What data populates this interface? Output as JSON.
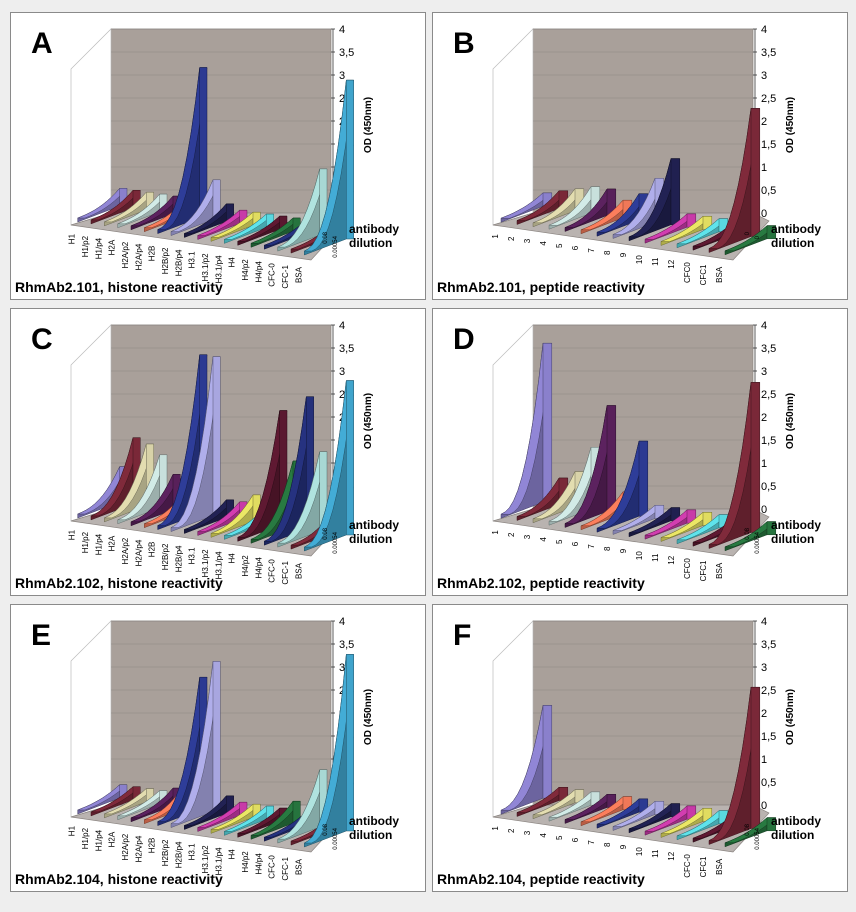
{
  "chart_data": [
    {
      "type": "bar",
      "panel": "A",
      "title": "RhmAb2.101, histone reactivity",
      "zlabel": "OD (450nm)",
      "ylabel": "antibody\ndilution",
      "z_ticks": [
        "0",
        "0,5",
        "1",
        "1,5",
        "2",
        "2,5",
        "3",
        "3,5",
        "4"
      ],
      "dilutions": [
        "0.08",
        "0.00054"
      ],
      "ylim": [
        0,
        4
      ],
      "categories": [
        "H1",
        "H1/p2",
        "H1/p4",
        "H2A",
        "H2A/p2",
        "H2A/p4",
        "H2B",
        "H2B/p2",
        "H2B/p4",
        "H3.1",
        "H3.1/p2",
        "H3.1/p4",
        "H4",
        "H4/p2",
        "H4/p4",
        "CFC-0",
        "CFC-1",
        "BSA"
      ],
      "values": [
        0.4,
        0.4,
        0.4,
        0.4,
        0.4,
        0.4,
        3.4,
        0.9,
        0.4,
        0.3,
        0.3,
        0.3,
        0.3,
        0.3,
        0.3,
        1.5,
        0.3,
        3.6
      ]
    },
    {
      "type": "bar",
      "panel": "B",
      "title": "RhmAb2.101, peptide reactivity",
      "zlabel": "OD (450nm)",
      "ylabel": "antibody\ndilution",
      "z_ticks": [
        "0",
        "0,5",
        "1",
        "1,5",
        "2",
        "2,5",
        "3",
        "3,5",
        "4"
      ],
      "dilutions": [
        "0",
        "0"
      ],
      "ylim": [
        0,
        4
      ],
      "categories": [
        "1",
        "2",
        "3",
        "4",
        "5",
        "6",
        "7",
        "8",
        "9",
        "10",
        "11",
        "12",
        "CFC0",
        "CFC1",
        "BSA"
      ],
      "values": [
        0.3,
        0.4,
        0.5,
        0.6,
        0.6,
        0.4,
        0.6,
        1.0,
        1.5,
        0.3,
        0.3,
        0.3,
        0.3,
        2.9,
        0.3
      ]
    },
    {
      "type": "bar",
      "panel": "C",
      "title": "RhmAb2.102, histone reactivity",
      "zlabel": "OD (450nm)",
      "ylabel": "antibody\ndilution",
      "z_ticks": [
        "0",
        "0,5",
        "1",
        "1,5",
        "2",
        "2,5",
        "3",
        "3,5",
        "4"
      ],
      "dilutions": [
        "0.08",
        "0.00054"
      ],
      "ylim": [
        0,
        4
      ],
      "categories": [
        "H1",
        "H1/p2",
        "H1/p4",
        "H2A",
        "H2A/p2",
        "H2A/p4",
        "H2B",
        "H2B/p2",
        "H2B/p4",
        "H3.1",
        "H3.1/p2",
        "H3.1/p4",
        "H4",
        "H4/p2",
        "H4/p4",
        "CFC-0",
        "CFC-1",
        "BSA"
      ],
      "values": [
        0.8,
        1.5,
        1.4,
        1.2,
        0.8,
        0.5,
        3.6,
        3.6,
        0.4,
        0.4,
        0.6,
        0.4,
        2.6,
        1.5,
        3.0,
        1.8,
        0.5,
        3.5
      ]
    },
    {
      "type": "bar",
      "panel": "D",
      "title": "RhmAb2.102, peptide reactivity",
      "zlabel": "OD (450nm)",
      "ylabel": "antibody\ndilution",
      "z_ticks": [
        "0",
        "0,5",
        "1",
        "1,5",
        "2",
        "2,5",
        "3",
        "3,5",
        "4"
      ],
      "dilutions": [
        "0.08",
        "0.00054"
      ],
      "ylim": [
        0,
        4
      ],
      "categories": [
        "1",
        "2",
        "3",
        "4",
        "5",
        "6",
        "7",
        "8",
        "9",
        "10",
        "11",
        "12",
        "CFC0",
        "CFC1",
        "BSA"
      ],
      "values": [
        3.6,
        0.6,
        0.8,
        1.4,
        2.4,
        0.5,
        1.7,
        0.3,
        0.3,
        0.3,
        0.3,
        0.3,
        0.3,
        3.4,
        0.3
      ]
    },
    {
      "type": "bar",
      "panel": "E",
      "title": "RhmAb2.104, histone reactivity",
      "zlabel": "OD (450nm)",
      "ylabel": "antibody\ndilution",
      "z_ticks": [
        "0",
        "0,5",
        "1",
        "1,5",
        "2",
        "2,5",
        "3",
        "3,5",
        "4"
      ],
      "dilutions": [
        "0.08",
        "0.00054"
      ],
      "ylim": [
        0,
        4
      ],
      "categories": [
        "H1",
        "H1/p2",
        "H1/p4",
        "H2A",
        "H2A/p2",
        "H2A/p4",
        "H2B",
        "H2B/p2",
        "H2B/p4",
        "H3.1",
        "H3.1/p2",
        "H3.1/p4",
        "H4",
        "H4/p2",
        "H4/p4",
        "CFC-0",
        "CFC-1",
        "BSA"
      ],
      "values": [
        0.3,
        0.3,
        0.3,
        0.3,
        0.4,
        0.6,
        3.0,
        3.4,
        0.4,
        0.3,
        0.3,
        0.3,
        0.3,
        0.5,
        0.3,
        1.3,
        0.3,
        4.0
      ]
    },
    {
      "type": "bar",
      "panel": "F",
      "title": "RhmAb2.104, peptide reactivity",
      "zlabel": "OD (450nm)",
      "ylabel": "antibody\ndilution",
      "z_ticks": [
        "0",
        "0,5",
        "1",
        "1,5",
        "2",
        "2,5",
        "3",
        "3,5",
        "4"
      ],
      "dilutions": [
        "0.08",
        "0.00054"
      ],
      "ylim": [
        0,
        4
      ],
      "categories": [
        "1",
        "2",
        "3",
        "4",
        "5",
        "6",
        "7",
        "8",
        "9",
        "10",
        "11",
        "12",
        "CFC-0",
        "CFC1",
        "BSA"
      ],
      "values": [
        2.1,
        0.3,
        0.3,
        0.3,
        0.3,
        0.3,
        0.3,
        0.3,
        0.3,
        0.3,
        0.3,
        0.3,
        0.3,
        3.2,
        0.3
      ]
    }
  ]
}
